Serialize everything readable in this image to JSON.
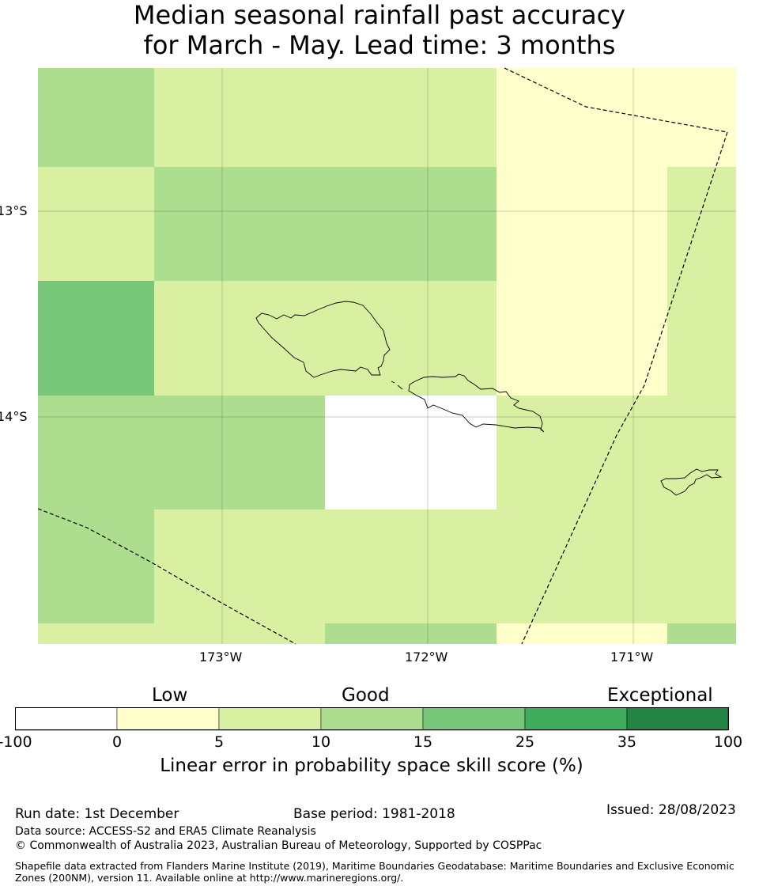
{
  "title": {
    "line1": "Median seasonal rainfall past accuracy",
    "line2": "for March - May. Lead time: 3 months"
  },
  "map": {
    "lat_labels": [
      "13°S",
      "14°S"
    ],
    "lon_labels": [
      "173°W",
      "172°W",
      "171°W"
    ],
    "colors": {
      "c0": "#ffffff",
      "c1": "#ffffcc",
      "c2": "#d9f0a3",
      "c3": "#addd8e",
      "c4": "#78c679",
      "c5": "#41ab5d",
      "c6": "#238443"
    }
  },
  "legend": {
    "categories": [
      "Low",
      "Good",
      "Exceptional"
    ],
    "ticks": [
      "-100",
      "0",
      "5",
      "10",
      "15",
      "25",
      "35",
      "100"
    ],
    "title": "Linear error in probability space skill score (%)"
  },
  "footer": {
    "run_date": "Run date: 1st December",
    "base_period": "Base period: 1981-2018",
    "issued": "Issued: 28/08/2023",
    "data_source": "Data source: ACCESS-S2 and ERA5 Climate Reanalysis",
    "copyright": "© Commonwealth of Australia 2023, Australian Bureau of Meteorology, Supported by COSPPac",
    "shapefile": "Shapefile data extracted from Flanders Marine Institute (2019), Maritime Boundaries Geodatabase: Maritime Boundaries and Exclusive Economic Zones (200NM), version 11. Available online at http://www.marineregions.org/."
  }
}
